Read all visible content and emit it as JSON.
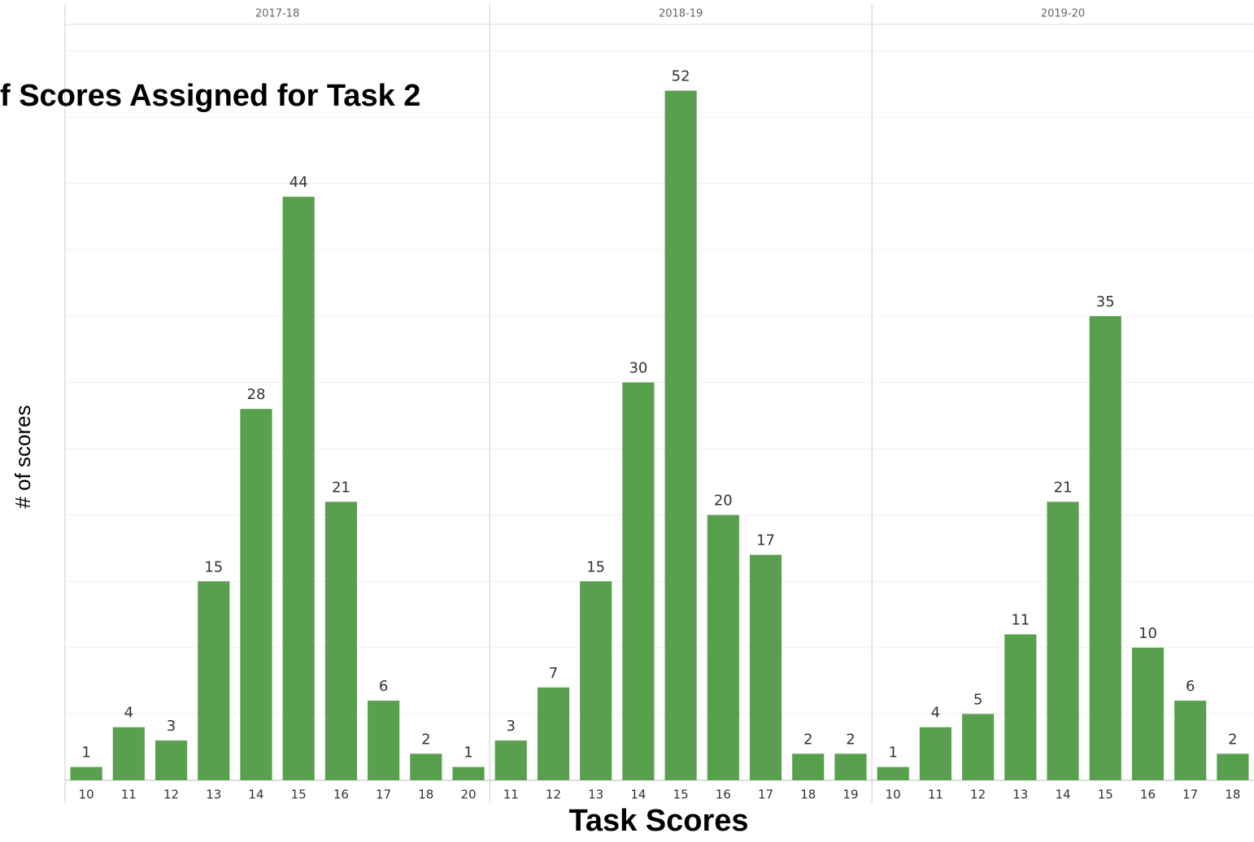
{
  "chart_data": {
    "type": "bar",
    "title": "f Scores Assigned for Task 2",
    "x_label": "Task Scores",
    "y_label": "# of scores",
    "color": "#59a04e",
    "grid": true,
    "ylim": [
      0,
      57
    ],
    "yticks": [
      0,
      5,
      10,
      15,
      20,
      25,
      30,
      35,
      40,
      45,
      50,
      55
    ],
    "panels": [
      {
        "name": "2017-18",
        "categories": [
          "10",
          "11",
          "12",
          "13",
          "14",
          "15",
          "16",
          "17",
          "18",
          "20"
        ],
        "values": [
          1,
          4,
          3,
          15,
          28,
          44,
          21,
          6,
          2,
          1
        ]
      },
      {
        "name": "2018-19",
        "categories": [
          "11",
          "12",
          "13",
          "14",
          "15",
          "16",
          "17",
          "18",
          "19"
        ],
        "values": [
          3,
          7,
          15,
          30,
          52,
          20,
          17,
          2,
          2
        ]
      },
      {
        "name": "2019-20",
        "categories": [
          "10",
          "11",
          "12",
          "13",
          "14",
          "15",
          "16",
          "17",
          "18"
        ],
        "values": [
          1,
          4,
          5,
          11,
          21,
          35,
          10,
          6,
          2
        ]
      }
    ]
  }
}
